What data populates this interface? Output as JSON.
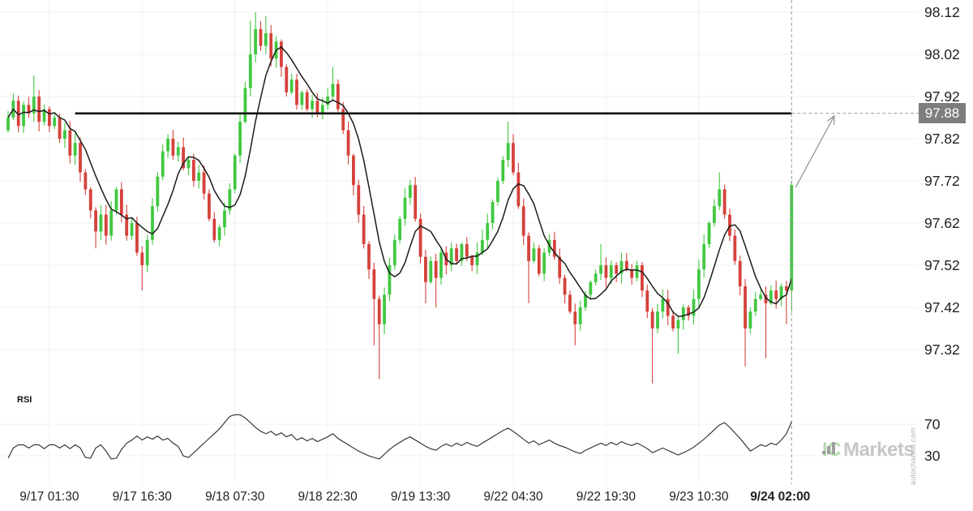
{
  "watermark": {
    "ic": "IC",
    "markets": "Markets",
    "site": "autochartist.com"
  },
  "chart_data": {
    "type": "candlestick",
    "title": "",
    "legend_position": "none",
    "grid": true,
    "price_axis": {
      "tick_labels": [
        "98.12",
        "98.02",
        "97.92",
        "97.82",
        "97.72",
        "97.62",
        "97.52",
        "97.42",
        "97.32"
      ],
      "tick_values": [
        98.12,
        98.02,
        97.92,
        97.82,
        97.72,
        97.62,
        97.52,
        97.42,
        97.32
      ]
    },
    "time_axis": {
      "labels": [
        "9/17 01:30",
        "9/17 16:30",
        "9/18 07:30",
        "9/18 22:30",
        "9/19 13:30",
        "9/22 04:30",
        "9/22 19:30",
        "9/23 10:30",
        "9/24 02:00"
      ],
      "indices": [
        8,
        26,
        44,
        62,
        80,
        98,
        116,
        134,
        152
      ],
      "bold_last": true
    },
    "candles": {
      "first_open": 97.84,
      "closes": [
        97.87,
        97.91,
        97.85,
        97.9,
        97.88,
        97.92,
        97.86,
        97.89,
        97.85,
        97.87,
        97.82,
        97.84,
        97.78,
        97.81,
        97.74,
        97.7,
        97.65,
        97.6,
        97.64,
        97.59,
        97.65,
        97.7,
        97.64,
        97.59,
        97.62,
        97.55,
        97.52,
        97.58,
        97.66,
        97.73,
        97.79,
        97.82,
        97.78,
        97.8,
        97.75,
        97.77,
        97.72,
        97.74,
        97.69,
        97.63,
        97.58,
        97.61,
        97.65,
        97.7,
        97.78,
        97.86,
        97.94,
        98.02,
        98.08,
        98.04,
        98.07,
        98.01,
        98.05,
        97.99,
        97.93,
        97.96,
        97.9,
        97.93,
        97.89,
        97.91,
        97.88,
        97.9,
        97.92,
        97.95,
        97.89,
        97.84,
        97.78,
        97.71,
        97.64,
        97.57,
        97.51,
        97.44,
        97.38,
        97.45,
        97.52,
        97.58,
        97.63,
        97.68,
        97.71,
        97.63,
        97.54,
        97.48,
        97.53,
        97.49,
        97.55,
        97.52,
        97.56,
        97.53,
        97.57,
        97.54,
        97.52,
        97.55,
        97.58,
        97.62,
        97.67,
        97.72,
        97.77,
        97.81,
        97.74,
        97.66,
        97.59,
        97.53,
        97.56,
        97.5,
        97.55,
        97.58,
        97.54,
        97.49,
        97.45,
        97.41,
        97.38,
        97.42,
        97.45,
        97.48,
        97.5,
        97.52,
        97.49,
        97.52,
        97.5,
        97.53,
        97.51,
        97.49,
        97.52,
        97.46,
        97.41,
        97.37,
        97.41,
        97.44,
        97.4,
        97.37,
        97.39,
        97.42,
        97.4,
        97.44,
        97.51,
        97.57,
        97.62,
        97.66,
        97.7,
        97.64,
        97.59,
        97.53,
        97.47,
        97.37,
        97.41,
        97.44,
        97.45,
        97.43,
        97.46,
        97.44,
        97.47,
        97.46,
        97.71
      ],
      "wick_highs": {
        "5": 97.97,
        "47": 98.1,
        "48": 98.12,
        "50": 98.11,
        "63": 97.99,
        "97": 97.86,
        "115": 97.57,
        "138": 97.74,
        "152": 97.72
      },
      "wick_lows": {
        "17": 97.56,
        "26": 97.46,
        "71": 97.33,
        "72": 97.25,
        "81": 97.43,
        "83": 97.42,
        "101": 97.43,
        "110": 97.33,
        "125": 97.24,
        "130": 97.31,
        "143": 97.28,
        "147": 97.3,
        "151": 97.38,
        "152": 97.41
      }
    },
    "ma_window": 7,
    "resistance": {
      "price": 97.88,
      "label": "97.88",
      "start_index": 13
    },
    "projection_arrow": {
      "from_price": 97.705,
      "to_price": 97.88
    },
    "rsi": {
      "label": "RSI",
      "tick_labels": [
        "70",
        "30"
      ],
      "tick_values": [
        70,
        30
      ],
      "values": [
        27,
        40,
        44,
        44,
        40,
        44,
        44,
        39,
        44,
        44,
        40,
        44,
        39,
        44,
        40,
        28,
        27,
        40,
        44,
        36,
        26,
        27,
        38,
        46,
        50,
        55,
        50,
        54,
        51,
        55,
        50,
        52,
        46,
        42,
        30,
        28,
        34,
        40,
        46,
        52,
        58,
        64,
        72,
        80,
        82,
        82,
        78,
        72,
        66,
        61,
        58,
        61,
        56,
        59,
        54,
        57,
        50,
        53,
        49,
        52,
        48,
        51,
        54,
        58,
        52,
        48,
        44,
        40,
        36,
        33,
        30,
        28,
        26,
        32,
        38,
        43,
        47,
        51,
        54,
        50,
        46,
        42,
        39,
        37,
        42,
        45,
        42,
        46,
        43,
        47,
        44,
        42,
        46,
        50,
        54,
        58,
        62,
        65,
        61,
        56,
        51,
        46,
        49,
        44,
        47,
        50,
        46,
        43,
        41,
        38,
        35,
        33,
        37,
        40,
        43,
        46,
        43,
        47,
        44,
        48,
        45,
        43,
        46,
        43,
        39,
        34,
        37,
        40,
        37,
        34,
        31,
        34,
        37,
        41,
        46,
        51,
        57,
        63,
        69,
        72,
        66,
        59,
        52,
        44,
        36,
        40,
        44,
        42,
        46,
        44,
        50,
        58,
        73
      ]
    },
    "colors": {
      "up": "#41c841",
      "down": "#d5423b",
      "ma": "#1b1b1b",
      "resistance": "#111111",
      "dashed": "#979797",
      "arrow": "#8f8f8f",
      "badge_bg": "#7d7d7d",
      "badge_text": "#ffffff",
      "grid": "#f1f1f1",
      "axis_text": "#1f1f1f",
      "rsi_line": "#2a2a2a"
    }
  }
}
